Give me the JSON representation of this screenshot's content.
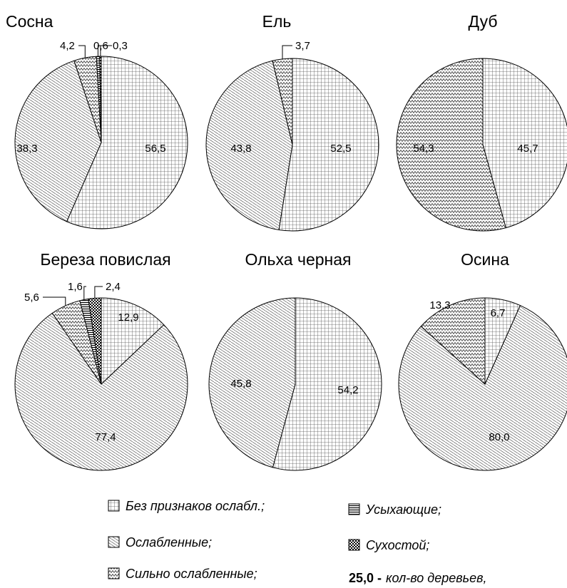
{
  "chart_data": {
    "type": "pie",
    "categories": [
      "Без признаков ослабл.;",
      "Ослабленные;",
      "Сильно ослабленные;",
      "Усыхающие;",
      "Сухостой;"
    ],
    "charts": [
      {
        "title": "Сосна",
        "slices": [
          {
            "category": "Без признаков ослабл.;",
            "value": 56.5,
            "label": "56,5"
          },
          {
            "category": "Ослабленные;",
            "value": 38.3,
            "label": "38,3"
          },
          {
            "category": "Сильно ослабленные;",
            "value": 4.2,
            "label": "4,2"
          },
          {
            "category": "Усыхающие;",
            "value": 0.6,
            "label": "0,6"
          },
          {
            "category": "Сухостой;",
            "value": 0.3,
            "label": "0,3"
          }
        ]
      },
      {
        "title": "Ель",
        "slices": [
          {
            "category": "Без признаков ослабл.;",
            "value": 52.5,
            "label": "52,5"
          },
          {
            "category": "Ослабленные;",
            "value": 43.8,
            "label": "43,8"
          },
          {
            "category": "Сильно ослабленные;",
            "value": 3.7,
            "label": "3,7"
          }
        ]
      },
      {
        "title": "Дуб",
        "slices": [
          {
            "category": "Без признаков ослабл.;",
            "value": 45.7,
            "label": "45,7"
          },
          {
            "category": "Сильно ослабленные;",
            "value": 54.3,
            "label": "54,3"
          }
        ]
      },
      {
        "title": "Береза повислая",
        "slices": [
          {
            "category": "Без признаков ослабл.;",
            "value": 12.9,
            "label": "12,9"
          },
          {
            "category": "Ослабленные;",
            "value": 77.4,
            "label": "77,4"
          },
          {
            "category": "Сильно ослабленные;",
            "value": 5.6,
            "label": "5,6"
          },
          {
            "category": "Усыхающие;",
            "value": 1.6,
            "label": "1,6"
          },
          {
            "category": "Сухостой;",
            "value": 2.4,
            "label": "2,4"
          }
        ]
      },
      {
        "title": "Ольха черная",
        "slices": [
          {
            "category": "Без признаков ослабл.;",
            "value": 54.2,
            "label": "54,2"
          },
          {
            "category": "Ослабленные;",
            "value": 45.8,
            "label": "45,8"
          }
        ]
      },
      {
        "title": "Осина",
        "slices": [
          {
            "category": "Без признаков ослабл.;",
            "value": 6.7,
            "label": "6,7"
          },
          {
            "category": "Ослабленные;",
            "value": 80.0,
            "label": "80,0"
          },
          {
            "category": "Сильно ослабленные;",
            "value": 13.3,
            "label": "13,3"
          }
        ]
      }
    ],
    "legend": {
      "items": [
        {
          "label": "Без признаков ослабл.;",
          "pattern": "grid"
        },
        {
          "label": "Ослабленные;",
          "pattern": "hatch"
        },
        {
          "label": "Сильно ослабленные;",
          "pattern": "zigzag"
        },
        {
          "label": "Усыхающие;",
          "pattern": "hlines"
        },
        {
          "label": "Сухостой;",
          "pattern": "checker"
        }
      ],
      "note_value": "25,0 -",
      "note_text": "кол-во деревьев,",
      "placement": "bottom"
    }
  }
}
